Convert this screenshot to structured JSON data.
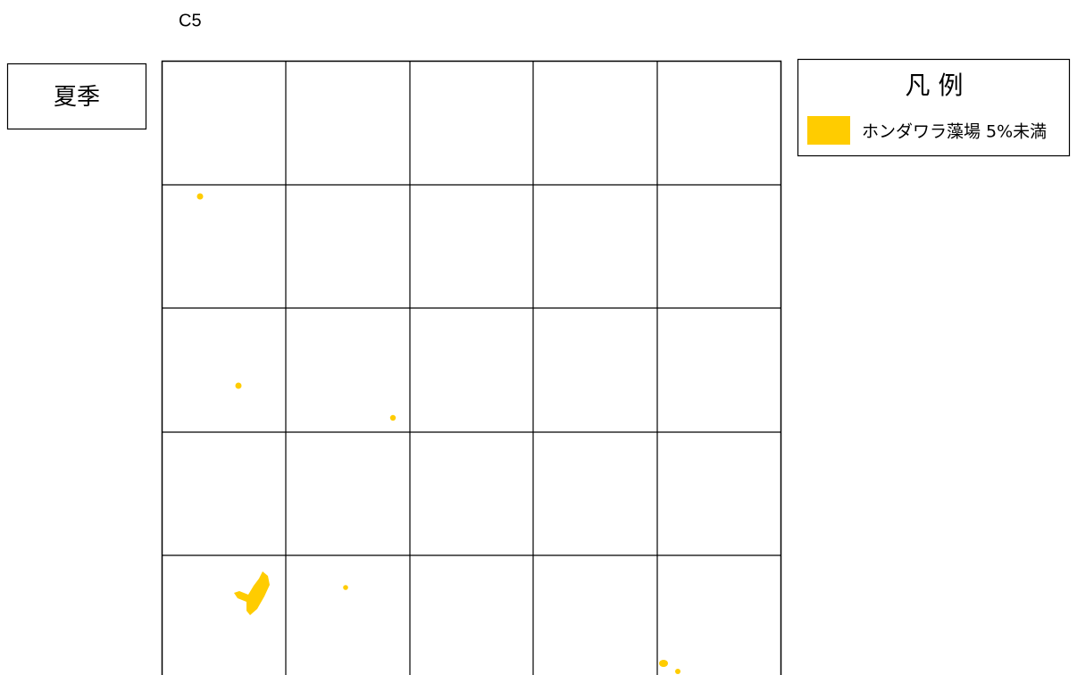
{
  "title": "C5",
  "season": "夏季",
  "legend": {
    "title": "凡 例",
    "items": [
      {
        "label": "ホンダワラ藻場 5%未満",
        "color": "#ffcc00"
      }
    ]
  }
}
